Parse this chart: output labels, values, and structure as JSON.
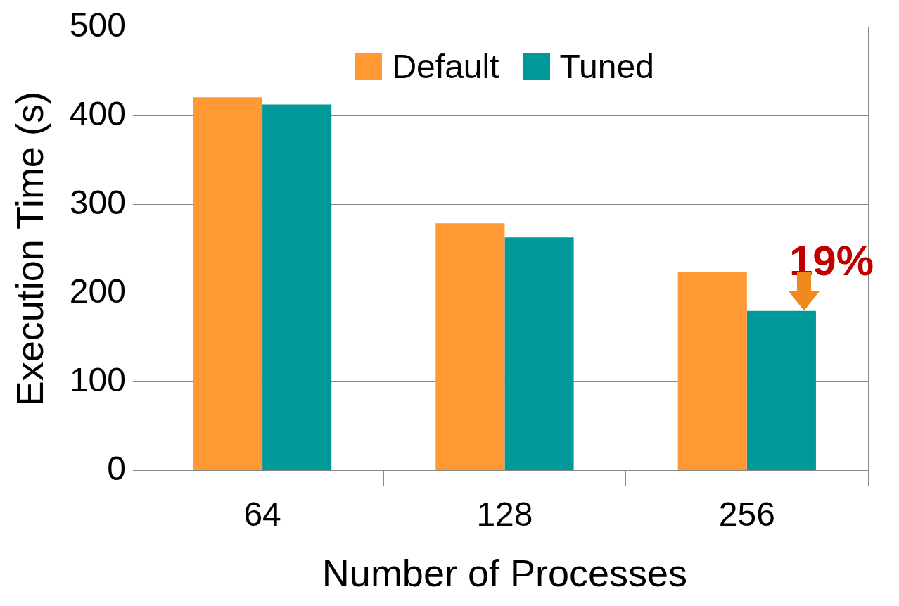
{
  "chart_data": {
    "type": "bar",
    "xlabel": "Number of Processes",
    "ylabel": "Execution Time (s)",
    "categories": [
      "64",
      "128",
      "256"
    ],
    "series": [
      {
        "name": "Default",
        "color": "#ff9933",
        "values": [
          421,
          279,
          224
        ]
      },
      {
        "name": "Tuned",
        "color": "#009999",
        "values": [
          413,
          263,
          180
        ]
      }
    ],
    "ylim": [
      0,
      500
    ],
    "yticks": [
      0,
      100,
      200,
      300,
      400,
      500
    ],
    "grid": "y",
    "legend": "top",
    "annotations": [
      {
        "text": "19%",
        "x": "256",
        "y": 224
      }
    ]
  }
}
